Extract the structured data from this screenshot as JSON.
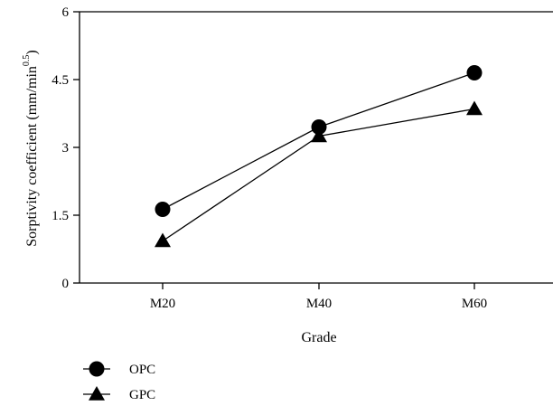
{
  "chart_data": {
    "type": "line",
    "categories": [
      "M20",
      "M40",
      "M60"
    ],
    "series": [
      {
        "name": "OPC",
        "values": [
          1.63,
          3.45,
          4.65
        ],
        "marker": "circle",
        "color": "#000000"
      },
      {
        "name": "GPC",
        "values": [
          0.93,
          3.25,
          3.85
        ],
        "marker": "triangle",
        "color": "#000000"
      }
    ],
    "xlabel": "Grade",
    "ylabel_main": "Sorptivity coefficient (mm/min",
    "ylabel_exponent": "0.5",
    "ylabel_close": ")",
    "ylim": [
      0,
      6
    ],
    "yticks": [
      0,
      1.5,
      3,
      4.5,
      6
    ],
    "ytick_labels": [
      "0",
      "1.5",
      "3",
      "4.5",
      "6"
    ],
    "grid": false,
    "legend_position": "bottom-left"
  }
}
